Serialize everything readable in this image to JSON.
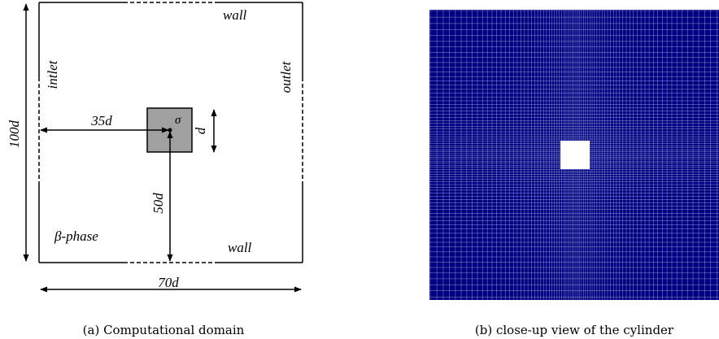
{
  "panel_a": {
    "labels": {
      "wall_top": "wall",
      "wall_bottom": "wall",
      "inlet": "intlet",
      "outlet": "outlet",
      "height": "100d",
      "width": "70d",
      "x_offset": "35d",
      "y_offset": "50d",
      "cylinder_size": "d",
      "sigma": "σ",
      "phase": "β-phase"
    },
    "caption": "(a) Computational domain"
  },
  "panel_b": {
    "caption": "(b) close-up view of the cylinder",
    "mesh_color": "#000080",
    "grid_line_color": "#9aa3d8"
  },
  "colors": {
    "cylinder_fill": "#a0a0a0",
    "line": "#000000"
  }
}
